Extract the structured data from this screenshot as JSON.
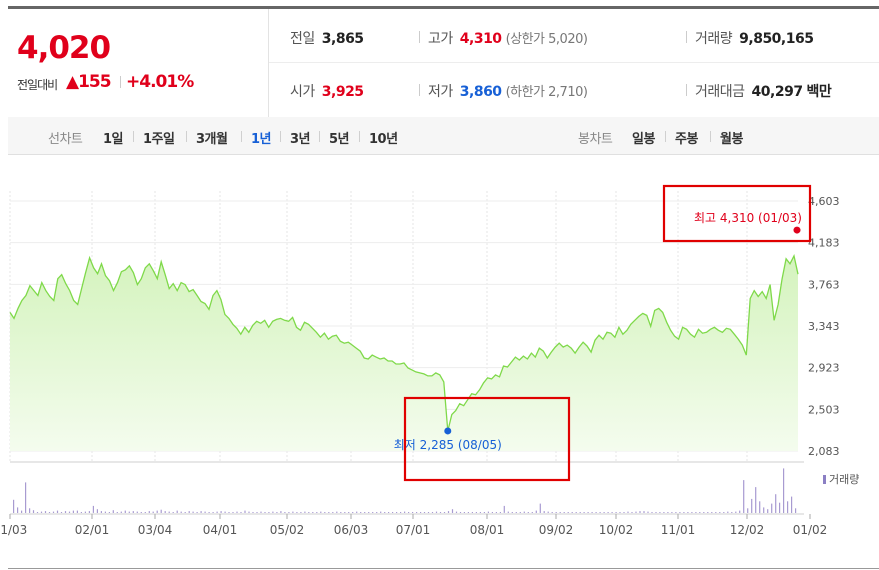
{
  "quote": {
    "price": "4,020",
    "change_label": "전일대비",
    "change_arrow": "▲",
    "change_amount": "155",
    "change_pct": "+4.01%",
    "prev_close": {
      "label": "전일",
      "value": "3,865"
    },
    "open": {
      "label": "시가",
      "value": "3,925"
    },
    "high": {
      "label": "고가",
      "value": "4,310",
      "note": "(상한가 5,020)"
    },
    "low": {
      "label": "저가",
      "value": "3,860",
      "note": "(하한가 2,710)"
    },
    "volume": {
      "label": "거래량",
      "value": "9,850,165"
    },
    "turnover": {
      "label": "거래대금",
      "value": "40,297",
      "unit": "백만"
    }
  },
  "line_tabs": {
    "label": "선차트",
    "items": [
      "1일",
      "1주일",
      "3개월",
      "1년",
      "3년",
      "5년",
      "10년"
    ],
    "selected": "1년"
  },
  "candle_tabs": {
    "label": "봉차트",
    "items": [
      "일봉",
      "주봉",
      "월봉"
    ]
  },
  "colors": {
    "up": "#e0001b",
    "down": "#1760d6",
    "line": "#7fd94a",
    "area_top": "#d4f3bd",
    "area_bottom": "#f4fcee",
    "volume": "#a89bd1",
    "highlight_box": "#e00000"
  },
  "chart_data": {
    "type": "area",
    "period": "1년",
    "x_ticks": [
      "01/03",
      "02/01",
      "03/04",
      "04/01",
      "05/02",
      "06/03",
      "07/01",
      "08/01",
      "09/02",
      "10/02",
      "11/01",
      "12/02",
      "01/02"
    ],
    "y_ticks": [
      "4,603",
      "4,183",
      "3,763",
      "3,343",
      "2,923",
      "2,503",
      "2,083"
    ],
    "y_tick_values": [
      4603,
      4183,
      3763,
      3343,
      2923,
      2503,
      2083
    ],
    "ylim": [
      2083,
      4603
    ],
    "grid": true,
    "series": [
      {
        "values": [
          3480,
          3420,
          3520,
          3600,
          3650,
          3750,
          3700,
          3650,
          3780,
          3700,
          3640,
          3600,
          3820,
          3860,
          3770,
          3700,
          3600,
          3560,
          3720,
          3880,
          4030,
          3930,
          3870,
          3970,
          3850,
          3800,
          3700,
          3780,
          3890,
          3910,
          3950,
          3880,
          3760,
          3820,
          3930,
          3970,
          3900,
          3820,
          3990,
          3860,
          3720,
          3770,
          3700,
          3780,
          3760,
          3690,
          3710,
          3650,
          3590,
          3570,
          3510,
          3650,
          3700,
          3610,
          3460,
          3420,
          3360,
          3320,
          3260,
          3330,
          3280,
          3350,
          3390,
          3370,
          3400,
          3330,
          3390,
          3410,
          3420,
          3400,
          3390,
          3430,
          3330,
          3300,
          3380,
          3360,
          3320,
          3280,
          3230,
          3270,
          3210,
          3240,
          3250,
          3190,
          3170,
          3180,
          3150,
          3120,
          3090,
          3020,
          3010,
          3050,
          3030,
          3010,
          3020,
          2990,
          2990,
          2960,
          2960,
          2970,
          2920,
          2900,
          2880,
          2870,
          2860,
          2840,
          2840,
          2870,
          2850,
          2780,
          2285,
          2450,
          2490,
          2560,
          2540,
          2600,
          2660,
          2650,
          2700,
          2770,
          2820,
          2810,
          2850,
          2830,
          2940,
          2930,
          2980,
          3030,
          3000,
          3040,
          3010,
          3070,
          3030,
          3120,
          3090,
          3020,
          3080,
          3130,
          3170,
          3130,
          3150,
          3120,
          3070,
          3130,
          3180,
          3140,
          3080,
          3200,
          3250,
          3210,
          3280,
          3270,
          3230,
          3330,
          3260,
          3300,
          3360,
          3400,
          3440,
          3470,
          3450,
          3340,
          3500,
          3520,
          3480,
          3380,
          3300,
          3240,
          3210,
          3330,
          3310,
          3260,
          3230,
          3310,
          3270,
          3280,
          3310,
          3330,
          3300,
          3280,
          3320,
          3310,
          3260,
          3210,
          3150,
          3050,
          3620,
          3700,
          3640,
          3690,
          3620,
          3760,
          3400,
          3560,
          3820,
          4020,
          3970,
          4050,
          3865
        ]
      }
    ],
    "volume_label": "거래량",
    "volume": [
      0.28,
      0.12,
      0.05,
      0.65,
      0.1,
      0.06,
      0.02,
      0.03,
      0.04,
      0.02,
      0.03,
      0.05,
      0.02,
      0.04,
      0.03,
      0.05,
      0.05,
      0.02,
      0.03,
      0.04,
      0.15,
      0.08,
      0.04,
      0.03,
      0.02,
      0.06,
      0.02,
      0.03,
      0.05,
      0.03,
      0.04,
      0.03,
      0.02,
      0.02,
      0.04,
      0.03,
      0.05,
      0.07,
      0.04,
      0.03,
      0.02,
      0.05,
      0.03,
      0.02,
      0.04,
      0.03,
      0.02,
      0.04,
      0.03,
      0.02,
      0.02,
      0.03,
      0.04,
      0.03,
      0.02,
      0.02,
      0.03,
      0.02,
      0.05,
      0.03,
      0.02,
      0.02,
      0.03,
      0.02,
      0.02,
      0.03,
      0.02,
      0.04,
      0.02,
      0.02,
      0.03,
      0.02,
      0.02,
      0.03,
      0.02,
      0.02,
      0.02,
      0.03,
      0.02,
      0.02,
      0.02,
      0.03,
      0.02,
      0.02,
      0.02,
      0.02,
      0.03,
      0.02,
      0.02,
      0.02,
      0.02,
      0.02,
      0.03,
      0.02,
      0.02,
      0.02,
      0.02,
      0.02,
      0.03,
      0.02,
      0.02,
      0.02,
      0.02,
      0.02,
      0.02,
      0.02,
      0.03,
      0.02,
      0.02,
      0.04,
      0.08,
      0.03,
      0.02,
      0.02,
      0.02,
      0.02,
      0.02,
      0.02,
      0.02,
      0.03,
      0.02,
      0.02,
      0.02,
      0.15,
      0.03,
      0.02,
      0.02,
      0.02,
      0.03,
      0.02,
      0.02,
      0.05,
      0.2,
      0.04,
      0.03,
      0.02,
      0.02,
      0.02,
      0.02,
      0.02,
      0.02,
      0.02,
      0.02,
      0.02,
      0.02,
      0.02,
      0.02,
      0.02,
      0.02,
      0.02,
      0.02,
      0.02,
      0.02,
      0.02,
      0.03,
      0.02,
      0.03,
      0.04,
      0.04,
      0.03,
      0.02,
      0.02,
      0.02,
      0.02,
      0.02,
      0.02,
      0.02,
      0.02,
      0.02,
      0.02,
      0.02,
      0.02,
      0.02,
      0.02,
      0.02,
      0.02,
      0.02,
      0.02,
      0.02,
      0.03,
      0.02,
      0.03,
      0.05,
      0.7,
      0.1,
      0.3,
      0.55,
      0.25,
      0.12,
      0.08,
      0.2,
      0.4,
      0.22,
      0.95,
      0.25,
      0.35,
      0.1
    ],
    "annotations": [
      {
        "label": "최고",
        "value": "4,310",
        "date": "(01/03)",
        "y": 4310,
        "kind": "high"
      },
      {
        "label": "최저",
        "value": "2,285",
        "date": "(08/05)",
        "y": 2285,
        "kind": "low"
      }
    ]
  }
}
